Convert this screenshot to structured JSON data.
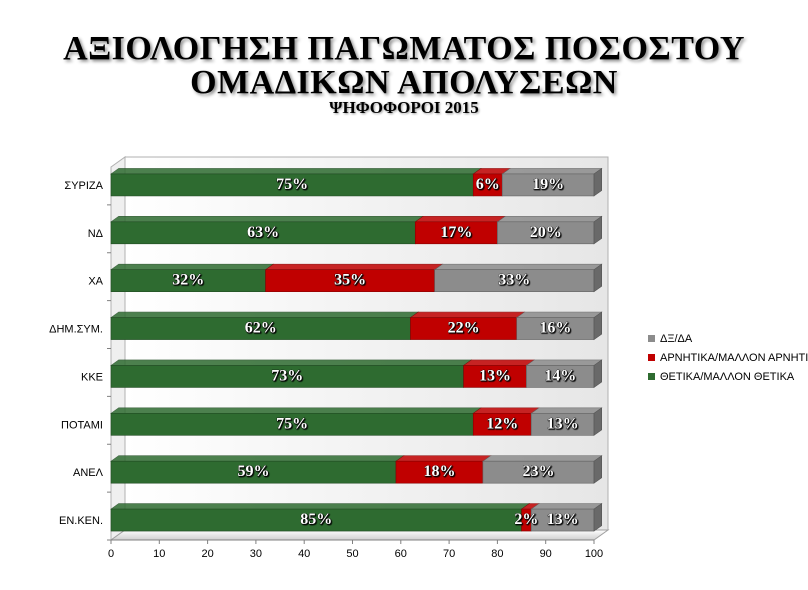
{
  "title_line1": "ΑΞΙΟΛΟΓΗΣΗ ΠΑΓΩΜΑΤΟΣ ΠΟΣΟΣΤΟΥ",
  "title_line2": "ΟΜΑΔΙΚΩΝ ΑΠΟΛΥΣΕΩΝ",
  "subtitle": "ΨΗΦΟΦΟΡΟΙ 2015",
  "legend": [
    {
      "label": "ΔΞ/ΔΑ",
      "color": "#8c8c8c"
    },
    {
      "label": "ΑΡΝΗΤΙΚΑ/ΜΑΛΛΟΝ ΑΡΝΗΤΙΚΑ",
      "color": "#c00000"
    },
    {
      "label": "ΘΕΤΙΚΑ/ΜΑΛΛΟΝ ΘΕΤΙΚΑ",
      "color": "#2e6b30"
    }
  ],
  "chart_data": {
    "type": "bar",
    "orientation": "horizontal",
    "stacked": true,
    "categories": [
      "ΣΥΡΙΖΑ",
      "ΝΔ",
      "ΧΑ",
      "ΔΗΜ.ΣΥΜ.",
      "ΚΚΕ",
      "ΠΟΤΑΜΙ",
      "ΑΝΕΛ",
      "ΕΝ.ΚΕΝ."
    ],
    "series": [
      {
        "name": "ΘΕΤΙΚΑ/ΜΑΛΛΟΝ ΘΕΤΙΚΑ",
        "color": "#2e6b30",
        "values": [
          75,
          63,
          32,
          62,
          73,
          75,
          59,
          85
        ],
        "labels": [
          "75%",
          "63%",
          "32%",
          "62%",
          "73%",
          "75%",
          "59%",
          "85%"
        ]
      },
      {
        "name": "ΑΡΝΗΤΙΚΑ/ΜΑΛΛΟΝ ΑΡΝΗΤΙΚΑ",
        "color": "#c00000",
        "values": [
          6,
          17,
          35,
          22,
          13,
          12,
          18,
          2
        ],
        "labels": [
          "6%",
          "17%",
          "35%",
          "22%",
          "13%",
          "12%",
          "18%",
          "2%"
        ]
      },
      {
        "name": "ΔΞ/ΔΑ",
        "color": "#8c8c8c",
        "values": [
          19,
          20,
          33,
          16,
          14,
          13,
          23,
          13
        ],
        "labels": [
          "19%",
          "20%",
          "33%",
          "16%",
          "14%",
          "13%",
          "23%",
          "13%"
        ]
      }
    ],
    "xlim": [
      0,
      100
    ],
    "xticks": [
      "0",
      "10",
      "20",
      "30",
      "40",
      "50",
      "60",
      "70",
      "80",
      "90",
      "100"
    ],
    "legend_position": "right",
    "grid": false
  }
}
